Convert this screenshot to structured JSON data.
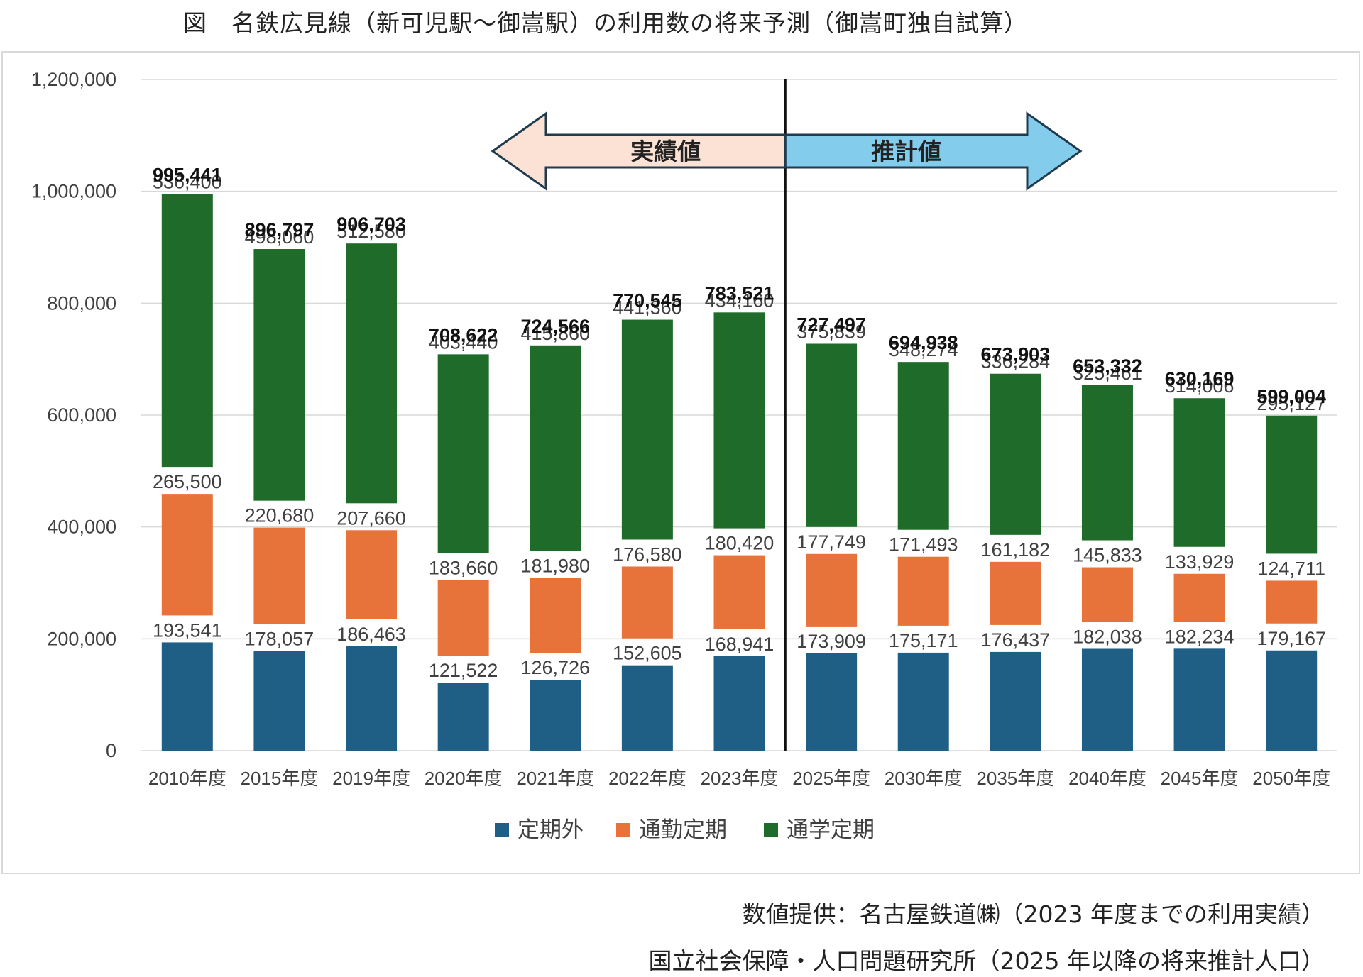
{
  "title": "図　名鉄広見線（新可児駅～御嵩駅）の利用数の将来予測（御嵩町独自試算）",
  "source_lines": [
    "数値提供：名古屋鉄道㈱（2023 年度までの利用実績）",
    "国立社会保障・人口問題研究所（2025 年以降の将来推計人口）"
  ],
  "chart_data": {
    "type": "bar",
    "stacked": true,
    "categories": [
      "2010年度",
      "2015年度",
      "2019年度",
      "2020年度",
      "2021年度",
      "2022年度",
      "2023年度",
      "2025年度",
      "2030年度",
      "2035年度",
      "2040年度",
      "2045年度",
      "2050年度"
    ],
    "series": [
      {
        "name": "定期外",
        "color": "#1f5f86",
        "values": [
          193541,
          178057,
          186463,
          121522,
          126726,
          152605,
          168941,
          173909,
          175171,
          176437,
          182038,
          182234,
          179167
        ]
      },
      {
        "name": "通勤定期",
        "color": "#e8733a",
        "values": [
          265500,
          220680,
          207660,
          183660,
          181980,
          176580,
          180420,
          177749,
          171493,
          161182,
          145833,
          133929,
          124711
        ]
      },
      {
        "name": "通学定期",
        "color": "#1e6b2a",
        "values": [
          536400,
          498060,
          512580,
          403440,
          415860,
          441360,
          434160,
          375839,
          348274,
          336284,
          325461,
          314006,
          295127
        ]
      }
    ],
    "totals": [
      995441,
      896797,
      906703,
      708622,
      724566,
      770545,
      783521,
      727497,
      694938,
      673903,
      653332,
      630169,
      599004
    ],
    "segment_labels": {
      "定期外": [
        "193,541",
        "178,057",
        "186,463",
        "121,522",
        "126,726",
        "152,605",
        "168,941",
        "173,909",
        "175,171",
        "176,437",
        "182,038",
        "182,234",
        "179,167"
      ],
      "通勤定期": [
        "265,500",
        "220,680",
        "207,660",
        "183,660",
        "181,980",
        "176,580",
        "180,420",
        "177,749",
        "171,493",
        "161,182",
        "145,833",
        "133,929",
        "124,711"
      ],
      "通学定期": [
        "536,400",
        "498,060",
        "512,580",
        "403,440",
        "415,860",
        "441,360",
        "434,160",
        "375,839",
        "348,274",
        "336,284",
        "325,461",
        "314,006",
        "295,127"
      ]
    },
    "total_labels": [
      "995,441",
      "896,797",
      "906,703",
      "708,622",
      "724,566",
      "770,545",
      "783,521",
      "727,497",
      "694,938",
      "673,903",
      "653,332",
      "630,169",
      "599,004"
    ],
    "y_ticks": [
      "0",
      "200,000",
      "400,000",
      "600,000",
      "800,000",
      "1,000,000",
      "1,200,000"
    ],
    "y_tick_values": [
      0,
      200000,
      400000,
      600000,
      800000,
      1000000,
      1200000
    ],
    "ylim": [
      0,
      1200000
    ],
    "grid": true,
    "legend_position": "bottom",
    "divider_after_category": "2023年度",
    "arrows": {
      "actual": {
        "label": "実績値",
        "color": "#fbe2d5"
      },
      "forecast": {
        "label": "推計値",
        "color": "#84ccec"
      }
    }
  }
}
